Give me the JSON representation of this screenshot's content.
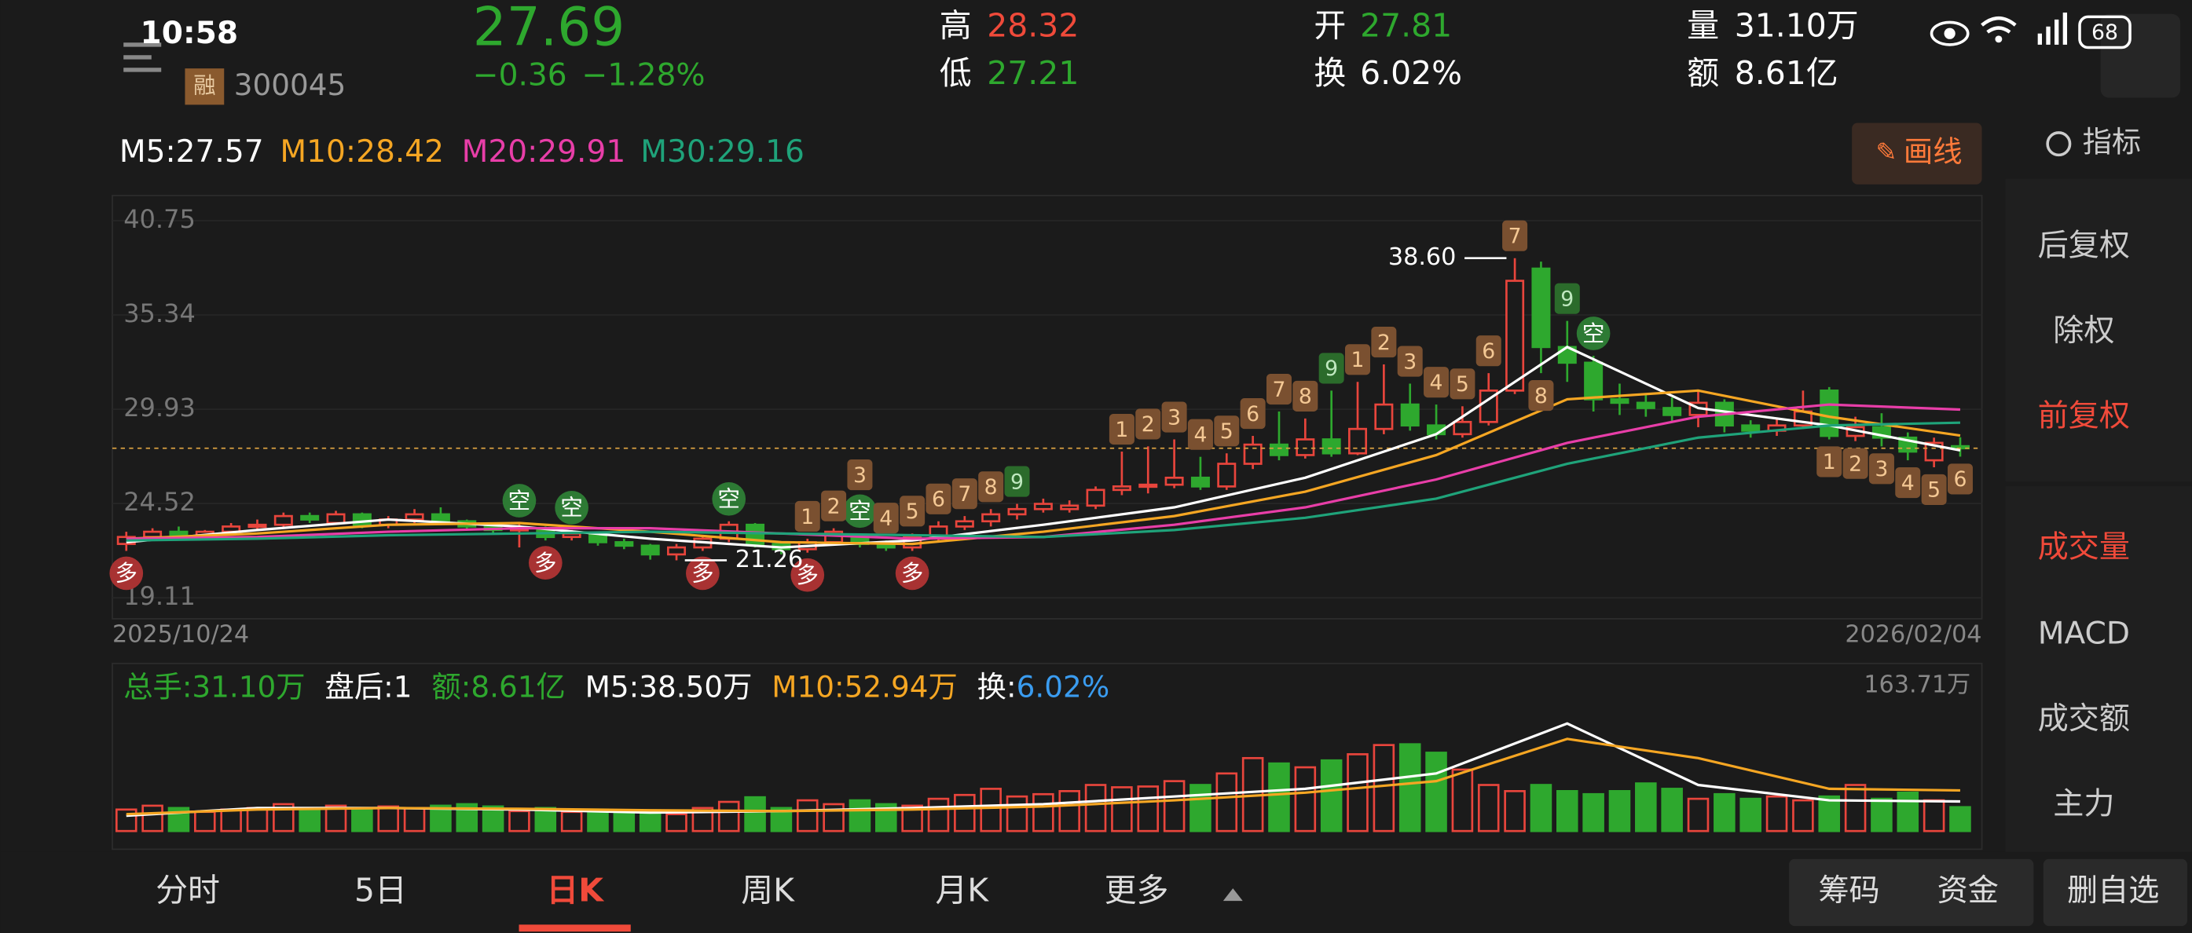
{
  "status": {
    "time": "10:58",
    "battery": "68"
  },
  "quote": {
    "price": "27.69",
    "change": "−0.36",
    "change_pct": "−1.28%",
    "margin_badge": "融",
    "code": "300045",
    "high_label": "高",
    "high": "28.32",
    "low_label": "低",
    "low": "27.21",
    "open_label": "开",
    "open": "27.81",
    "turnover_label": "换",
    "turnover": "6.02%",
    "volume_label": "量",
    "volume": "31.10万",
    "amount_label": "额",
    "amount": "8.61亿"
  },
  "ma_legend": [
    {
      "label": "M5:27.57",
      "color": "#ffffff"
    },
    {
      "label": "M10:28.42",
      "color": "#f5a623"
    },
    {
      "label": "M20:29.91",
      "color": "#e83ea8"
    },
    {
      "label": "M30:29.16",
      "color": "#1fa37a"
    }
  ],
  "draw_button": "画线",
  "side_menu": {
    "indicator": "指标",
    "items": [
      {
        "label": "后复权",
        "color": "#cccccc"
      },
      {
        "label": "除权",
        "color": "#cccccc"
      },
      {
        "label": "前复权",
        "color": "#f04a3a"
      },
      {
        "label": "成交量",
        "color": "#f04a3a"
      },
      {
        "label": "MACD",
        "color": "#cccccc"
      },
      {
        "label": "成交额",
        "color": "#cccccc"
      },
      {
        "label": "主力",
        "color": "#cccccc"
      }
    ]
  },
  "chart_data": {
    "type": "candlestick",
    "ylim": [
      19.11,
      40.75
    ],
    "yticks": [
      40.75,
      35.34,
      29.93,
      24.52,
      19.11
    ],
    "x_start": "2025/10/24",
    "x_end": "2026/02/04",
    "up_color": "#e8453c",
    "down_color": "#2ea82e",
    "candles": [
      [
        22.2,
        22.6,
        22.9,
        21.8
      ],
      [
        22.6,
        22.9,
        23.1,
        22.4
      ],
      [
        22.9,
        22.7,
        23.2,
        22.5
      ],
      [
        22.7,
        22.9,
        23.0,
        22.5
      ],
      [
        22.9,
        23.2,
        23.4,
        22.7
      ],
      [
        23.2,
        23.3,
        23.6,
        23.0
      ],
      [
        23.3,
        23.8,
        24.0,
        23.1
      ],
      [
        23.8,
        23.6,
        24.0,
        23.4
      ],
      [
        23.4,
        23.9,
        24.1,
        23.3
      ],
      [
        23.9,
        23.3,
        24.0,
        23.1
      ],
      [
        23.3,
        23.6,
        23.8,
        23.1
      ],
      [
        23.6,
        23.9,
        24.2,
        23.4
      ],
      [
        23.9,
        23.5,
        24.3,
        23.4
      ],
      [
        23.5,
        23.2,
        23.6,
        23.0
      ],
      [
        23.2,
        23.0,
        23.4,
        22.8
      ],
      [
        23.0,
        23.1,
        23.4,
        22.0
      ],
      [
        23.1,
        22.6,
        23.2,
        22.4
      ],
      [
        22.6,
        22.8,
        23.0,
        22.4
      ],
      [
        22.8,
        22.3,
        22.9,
        22.1
      ],
      [
        22.3,
        22.1,
        22.5,
        21.9
      ],
      [
        22.1,
        21.6,
        22.2,
        21.3
      ],
      [
        21.6,
        22.0,
        22.2,
        21.26
      ],
      [
        22.0,
        22.5,
        22.7,
        21.8
      ],
      [
        22.5,
        23.3,
        23.5,
        22.3
      ],
      [
        23.3,
        22.2,
        23.4,
        22.0
      ],
      [
        22.2,
        21.9,
        22.3,
        21.6
      ],
      [
        21.9,
        22.3,
        22.5,
        21.7
      ],
      [
        22.3,
        22.9,
        23.1,
        22.1
      ],
      [
        22.6,
        22.2,
        22.8,
        22.0
      ],
      [
        22.2,
        22.0,
        22.4,
        21.8
      ],
      [
        22.0,
        22.6,
        22.8,
        21.8
      ],
      [
        22.6,
        23.2,
        23.5,
        22.4
      ],
      [
        23.2,
        23.5,
        23.8,
        23.0
      ],
      [
        23.5,
        23.9,
        24.2,
        23.2
      ],
      [
        23.9,
        24.2,
        24.5,
        23.6
      ],
      [
        24.2,
        24.5,
        24.8,
        24.0
      ],
      [
        24.2,
        24.4,
        24.7,
        24.0
      ],
      [
        24.4,
        25.3,
        25.5,
        24.2
      ],
      [
        25.3,
        25.5,
        27.5,
        25.0
      ],
      [
        25.5,
        25.6,
        27.8,
        25.1
      ],
      [
        25.6,
        26.0,
        28.2,
        25.4
      ],
      [
        26.0,
        25.5,
        27.2,
        25.3
      ],
      [
        25.5,
        26.8,
        27.4,
        25.3
      ],
      [
        26.8,
        27.9,
        28.4,
        26.5
      ],
      [
        27.9,
        27.3,
        29.8,
        27.0
      ],
      [
        27.3,
        28.2,
        29.4,
        27.1
      ],
      [
        28.2,
        27.4,
        31.0,
        27.2
      ],
      [
        27.4,
        28.8,
        31.5,
        27.3
      ],
      [
        28.8,
        30.2,
        32.5,
        28.5
      ],
      [
        30.2,
        29.0,
        31.4,
        28.7
      ],
      [
        29.0,
        28.5,
        30.2,
        28.2
      ],
      [
        28.5,
        29.2,
        30.1,
        28.3
      ],
      [
        29.2,
        31.0,
        32.0,
        29.0
      ],
      [
        31.0,
        37.3,
        38.6,
        30.8
      ],
      [
        38.0,
        33.5,
        38.4,
        32.0
      ],
      [
        33.5,
        32.6,
        35.0,
        31.5
      ],
      [
        32.6,
        30.5,
        33.0,
        29.8
      ],
      [
        30.5,
        30.3,
        31.4,
        29.6
      ],
      [
        30.3,
        30.0,
        30.8,
        29.5
      ],
      [
        30.0,
        29.6,
        30.6,
        29.2
      ],
      [
        29.6,
        30.3,
        31.0,
        28.9
      ],
      [
        30.3,
        29.0,
        30.5,
        28.6
      ],
      [
        29.0,
        28.7,
        29.3,
        28.3
      ],
      [
        28.7,
        29.0,
        29.4,
        28.4
      ],
      [
        29.0,
        29.8,
        31.0,
        28.8
      ],
      [
        31.0,
        28.4,
        31.2,
        28.2
      ],
      [
        28.4,
        28.9,
        29.5,
        28.1
      ],
      [
        28.9,
        28.3,
        29.7,
        27.8
      ],
      [
        28.3,
        27.5,
        28.6,
        27.0
      ],
      [
        27.0,
        28.0,
        28.3,
        26.6
      ],
      [
        27.81,
        27.69,
        28.32,
        27.21
      ]
    ],
    "ma": {
      "x": [
        0,
        5,
        10,
        15,
        20,
        25,
        30,
        35,
        40,
        45,
        50,
        55,
        60,
        65,
        70
      ],
      "series": [
        {
          "name": "M5",
          "color": "#ffffff",
          "values": [
            22.3,
            23.0,
            23.6,
            23.2,
            22.5,
            22.0,
            22.4,
            23.3,
            24.3,
            26.0,
            28.5,
            33.5,
            30.0,
            29.0,
            27.57
          ]
        },
        {
          "name": "M10",
          "color": "#f5a623",
          "values": [
            22.5,
            22.8,
            23.3,
            23.4,
            22.9,
            22.3,
            22.2,
            22.9,
            23.8,
            25.2,
            27.3,
            30.5,
            31.0,
            29.5,
            28.42
          ]
        },
        {
          "name": "M20",
          "color": "#e83ea8",
          "values": [
            22.5,
            22.6,
            22.9,
            23.1,
            23.1,
            22.8,
            22.5,
            22.6,
            23.3,
            24.3,
            25.9,
            28.0,
            29.5,
            30.2,
            29.91
          ]
        },
        {
          "name": "M30",
          "color": "#1fa37a",
          "values": [
            22.4,
            22.5,
            22.7,
            22.8,
            22.9,
            22.8,
            22.7,
            22.6,
            23.0,
            23.7,
            24.8,
            26.8,
            28.3,
            29.0,
            29.16
          ]
        }
      ]
    },
    "signals": [
      {
        "text": "多",
        "candle": 0,
        "below": true
      },
      {
        "text": "空",
        "candle": 15,
        "below": false
      },
      {
        "text": "多",
        "candle": 16,
        "below": true
      },
      {
        "text": "空",
        "candle": 17,
        "below": false
      },
      {
        "text": "多",
        "candle": 22,
        "below": true
      },
      {
        "text": "空",
        "candle": 23,
        "below": false
      },
      {
        "text": "多",
        "candle": 26,
        "below": true
      },
      {
        "text": "空",
        "candle": 28,
        "below": false
      },
      {
        "text": "多",
        "candle": 30,
        "below": true
      },
      {
        "text": "1",
        "candle": 26,
        "below": false
      },
      {
        "text": "2",
        "candle": 27,
        "below": false
      },
      {
        "text": "3",
        "candle": 28,
        "below": false
      },
      {
        "text": "4",
        "candle": 29,
        "below": false
      },
      {
        "text": "5",
        "candle": 30,
        "below": false
      },
      {
        "text": "6",
        "candle": 31,
        "below": false
      },
      {
        "text": "7",
        "candle": 32,
        "below": false
      },
      {
        "text": "8",
        "candle": 33,
        "below": false
      },
      {
        "text": "9",
        "candle": 34,
        "below": false
      },
      {
        "text": "1",
        "candle": 38,
        "below": false
      },
      {
        "text": "2",
        "candle": 39,
        "below": false
      },
      {
        "text": "3",
        "candle": 40,
        "below": false
      },
      {
        "text": "4",
        "candle": 41,
        "below": false
      },
      {
        "text": "5",
        "candle": 42,
        "below": false
      },
      {
        "text": "6",
        "candle": 43,
        "below": false
      },
      {
        "text": "7",
        "candle": 44,
        "below": false
      },
      {
        "text": "8",
        "candle": 45,
        "below": false
      },
      {
        "text": "9",
        "candle": 46,
        "below": false
      },
      {
        "text": "1",
        "candle": 47,
        "below": false
      },
      {
        "text": "2",
        "candle": 48,
        "below": false
      },
      {
        "text": "3",
        "candle": 49,
        "below": false
      },
      {
        "text": "4",
        "candle": 50,
        "below": false
      },
      {
        "text": "5",
        "candle": 51,
        "below": false
      },
      {
        "text": "6",
        "candle": 52,
        "below": false
      },
      {
        "text": "7",
        "candle": 53,
        "below": false
      },
      {
        "text": "8",
        "candle": 54,
        "below": true
      },
      {
        "text": "9",
        "candle": 55,
        "below": false
      },
      {
        "text": "空",
        "candle": 56,
        "below": false
      },
      {
        "text": "1",
        "candle": 65,
        "below": true
      },
      {
        "text": "2",
        "candle": 66,
        "below": true
      },
      {
        "text": "3",
        "candle": 67,
        "below": true
      },
      {
        "text": "4",
        "candle": 68,
        "below": true
      },
      {
        "text": "5",
        "candle": 69,
        "below": true
      },
      {
        "text": "6",
        "candle": 70,
        "below": true
      }
    ],
    "price_marks": [
      {
        "label": "38.60",
        "candle": 53,
        "value": 38.6,
        "side": "left"
      },
      {
        "label": "21.26",
        "candle": 21,
        "value": 21.26,
        "side": "right"
      }
    ]
  },
  "volume_data": {
    "type": "bar",
    "max_label": "163.71万",
    "ylim": [
      0,
      163.71
    ],
    "header": [
      {
        "text": "总手:31.10万",
        "color": "#2ea82e"
      },
      {
        "text": "盘后:1",
        "color": "#ffffff"
      },
      {
        "text": "额:8.61亿",
        "color": "#2ea82e"
      },
      {
        "text": "M5:38.50万",
        "color": "#ffffff"
      },
      {
        "text": "M10:52.94万",
        "color": "#f5a623"
      },
      {
        "text": "换:",
        "color": "#ffffff"
      },
      {
        "text": "6.02%",
        "color": "#3a9cf0"
      }
    ],
    "values": [
      28,
      33,
      30,
      25,
      28,
      30,
      35,
      28,
      33,
      30,
      32,
      30,
      33,
      35,
      32,
      26,
      30,
      25,
      28,
      26,
      27,
      22,
      30,
      38,
      44,
      30,
      40,
      35,
      40,
      35,
      33,
      42,
      47,
      55,
      45,
      48,
      52,
      60,
      57,
      58,
      65,
      60,
      75,
      95,
      88,
      83,
      92,
      100,
      112,
      113,
      102,
      80,
      60,
      52,
      60,
      52,
      48,
      52,
      62,
      55,
      42,
      48,
      42,
      45,
      40,
      45,
      60,
      42,
      50,
      40,
      31.1
    ],
    "ma": {
      "x": [
        0,
        5,
        10,
        15,
        20,
        25,
        30,
        35,
        40,
        45,
        50,
        55,
        60,
        65,
        70
      ],
      "series": [
        {
          "name": "M5",
          "color": "#ffffff",
          "values": [
            20,
            30,
            30,
            28,
            24,
            26,
            30,
            35,
            45,
            55,
            75,
            140,
            60,
            40,
            38.5
          ]
        },
        {
          "name": "M10",
          "color": "#f5a623",
          "values": [
            22,
            28,
            30,
            29,
            27,
            26,
            28,
            32,
            40,
            50,
            65,
            120,
            95,
            55,
            52.94
          ]
        }
      ]
    }
  },
  "tabs": [
    {
      "label": "分时",
      "active": false
    },
    {
      "label": "5日",
      "active": false
    },
    {
      "label": "日K",
      "active": true
    },
    {
      "label": "周K",
      "active": false
    },
    {
      "label": "月K",
      "active": false
    },
    {
      "label": "更多",
      "active": false
    }
  ],
  "bottom_buttons": [
    "筹码",
    "资金",
    "删自选"
  ]
}
